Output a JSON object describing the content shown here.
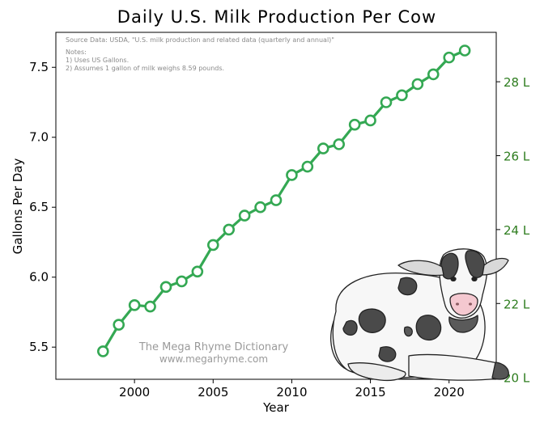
{
  "chart_data": {
    "type": "line",
    "title": "Daily U.S. Milk Production Per Cow",
    "xlabel": "Year",
    "ylabel": "Gallons Per Day",
    "xlim": [
      1995,
      2023
    ],
    "ylim": [
      5.27,
      7.75
    ],
    "x_ticks": [
      2000,
      2005,
      2010,
      2015,
      2020
    ],
    "y_ticks": [
      5.5,
      6.0,
      6.5,
      7.0,
      7.5
    ],
    "y_tick_labels": [
      "5.5",
      "6.0",
      "6.5",
      "7.0",
      "7.5"
    ],
    "right_axis": {
      "ticks": [
        20,
        22,
        24,
        26,
        28
      ],
      "tick_labels": [
        "20 L",
        "22 L",
        "24 L",
        "26 L",
        "28 L"
      ],
      "color": "#2e7d1f"
    },
    "series": [
      {
        "color": "#34a853",
        "x": [
          1998,
          1999,
          2000,
          2001,
          2002,
          2003,
          2004,
          2005,
          2006,
          2007,
          2008,
          2009,
          2010,
          2011,
          2012,
          2013,
          2014,
          2015,
          2016,
          2017,
          2018,
          2019,
          2020,
          2021
        ],
        "y": [
          5.47,
          5.66,
          5.8,
          5.79,
          5.93,
          5.97,
          6.04,
          6.23,
          6.34,
          6.44,
          6.5,
          6.55,
          6.73,
          6.79,
          6.92,
          6.95,
          7.09,
          7.12,
          7.25,
          7.3,
          7.38,
          7.45,
          7.57,
          7.62
        ]
      }
    ],
    "notes": {
      "source": "Source Data: USDA, \"U.S. milk production and related data (quarterly and annual)\"",
      "heading": "Notes:",
      "items": [
        "1)  Uses US Gallons.",
        "2)  Assumes 1 gallon of milk weighs 8.59 pounds."
      ]
    },
    "watermark": {
      "line1": "The Mega Rhyme Dictionary",
      "line2": "www.megarhyme.com"
    },
    "illustration": "cow-illustration"
  }
}
